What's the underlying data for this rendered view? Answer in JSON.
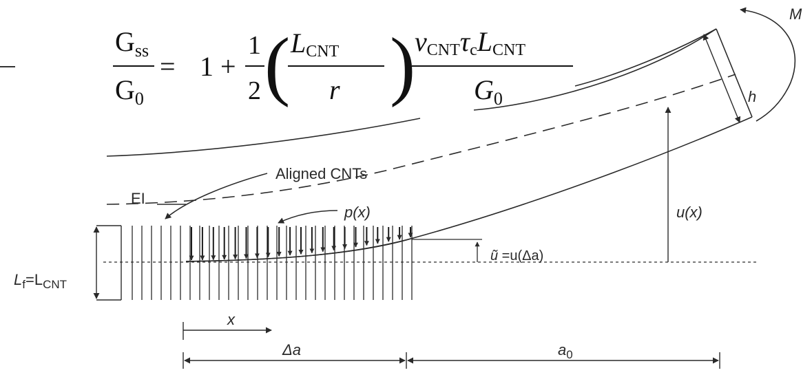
{
  "equation": {
    "lhs_num": "G",
    "lhs_num_sub": "ss",
    "lhs_den": "G",
    "lhs_den_sub": "0",
    "equals": "=",
    "one_plus": "1 +",
    "half_num": "1",
    "half_den": "2",
    "paren_open": "(",
    "paren_close": ")",
    "ratio_num": "L",
    "ratio_num_sub": "CNT",
    "ratio_den": "r",
    "right_num_v": "v",
    "right_num_v_sub": "CNT",
    "right_num_tau": "τ",
    "right_num_tau_sub": "c",
    "right_num_L": "L",
    "right_num_L_sub": "CNT",
    "right_den": "G",
    "right_den_sub": "0"
  },
  "labels": {
    "moment": "M",
    "thickness": "h",
    "aligned_cnts": "Aligned CNTs",
    "ei": "EI",
    "load": "p(x)",
    "deflection": "u(x)",
    "u_tilde_lhs": "ũ",
    "u_tilde_rhs": " =u(Δa)",
    "lf": "L",
    "lf_sub": "f",
    "lf_eq": "=L",
    "lf_eq_sub": "CNT",
    "x": "x",
    "delta_a": "Δa",
    "a0": "a",
    "a0_sub": "0"
  },
  "diagram": {
    "cnt_count": 30,
    "load_arrow_count": 21
  }
}
